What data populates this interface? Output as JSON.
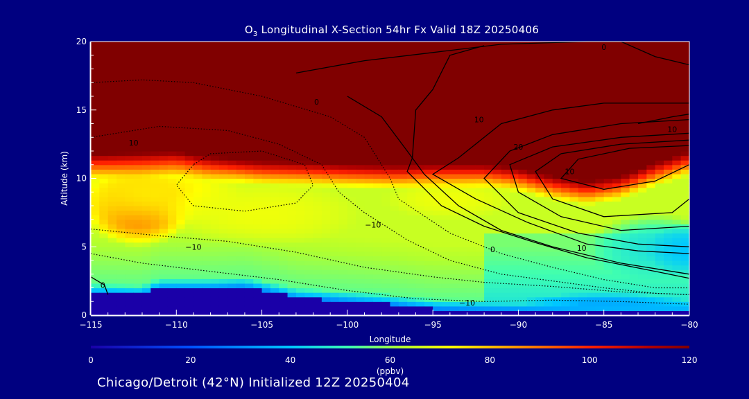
{
  "chart_data": {
    "type": "heatmap",
    "title_prefix": "O",
    "title_sub": "3",
    "title_rest": " Longitudinal X-Section 54hr  Fx Valid 18Z 20250406",
    "xlabel": "Longitude",
    "ylabel": "Altitude (km)",
    "xlim": [
      -115,
      -80
    ],
    "ylim": [
      0,
      20
    ],
    "x_ticks": [
      -115,
      -110,
      -105,
      -100,
      -95,
      -90,
      -85,
      -80
    ],
    "x_tick_labels": [
      "−115",
      "−110",
      "−105",
      "−100",
      "−95",
      "−90",
      "−85",
      "−80"
    ],
    "y_ticks": [
      0,
      5,
      10,
      15,
      20
    ],
    "y_tick_labels": [
      "0",
      "5",
      "10",
      "15",
      "20"
    ],
    "colorbar": {
      "label": "(ppbv)",
      "range": [
        0,
        120
      ],
      "ticks": [
        0,
        20,
        40,
        60,
        80,
        100,
        120
      ],
      "tick_labels": [
        "0",
        "20",
        "40",
        "60",
        "80",
        "100",
        "120"
      ],
      "stops": [
        {
          "v": 0,
          "c": "#1a00a8"
        },
        {
          "v": 20,
          "c": "#0050ff"
        },
        {
          "v": 40,
          "c": "#00c8ff"
        },
        {
          "v": 52,
          "c": "#40ffb0"
        },
        {
          "v": 62,
          "c": "#b0ff30"
        },
        {
          "v": 72,
          "c": "#ffff00"
        },
        {
          "v": 86,
          "c": "#ff9000"
        },
        {
          "v": 100,
          "c": "#ff2000"
        },
        {
          "v": 112,
          "c": "#b00000"
        },
        {
          "v": 120,
          "c": "#800000"
        }
      ]
    },
    "tropopause_km": [
      [
        -115,
        10.9
      ],
      [
        -112,
        11.0
      ],
      [
        -110,
        11.1
      ],
      [
        -108,
        10.7
      ],
      [
        -105,
        10.4
      ],
      [
        -102,
        10.3
      ],
      [
        -100,
        10.2
      ],
      [
        -97,
        10.1
      ],
      [
        -95,
        10.2
      ],
      [
        -92,
        10.2
      ],
      [
        -90,
        9.9
      ],
      [
        -88,
        9.3
      ],
      [
        -86,
        8.9
      ],
      [
        -84,
        9.3
      ],
      [
        -82,
        10.3
      ],
      [
        -80,
        11.1
      ]
    ],
    "stratosphere_ppbv": 120,
    "blobs": [
      {
        "lon": -112.2,
        "alt": 7.8,
        "rlon": 3.2,
        "ralt": 2.8,
        "ppbv": 90
      },
      {
        "lon": -111.5,
        "alt": 9.0,
        "rlon": 5.5,
        "ralt": 2.6,
        "ppbv": 75
      },
      {
        "lon": -105,
        "alt": 7.5,
        "rlon": 6,
        "ralt": 2.5,
        "ppbv": 70
      },
      {
        "lon": -94,
        "alt": 8.5,
        "rlon": 4,
        "ralt": 1.5,
        "ppbv": 70
      },
      {
        "lon": -82,
        "alt": 5.0,
        "rlon": 4,
        "ralt": 2.5,
        "ppbv": 46
      },
      {
        "lon": -80,
        "alt": 4.8,
        "rlon": 2.5,
        "ralt": 2.0,
        "ppbv": 40
      },
      {
        "lon": -85,
        "alt": 1.0,
        "rlon": 5,
        "ralt": 0.6,
        "ppbv": 35
      }
    ],
    "terrain_km": [
      [
        -115,
        1.6
      ],
      [
        -112,
        1.5
      ],
      [
        -111,
        2.0
      ],
      [
        -108,
        2.0
      ],
      [
        -106,
        2.1
      ],
      [
        -104,
        1.6
      ],
      [
        -103,
        1.3
      ],
      [
        -98,
        0.9
      ],
      [
        -95,
        0.5
      ],
      [
        -90,
        0.4
      ],
      [
        -85,
        0.3
      ],
      [
        -80,
        0.3
      ]
    ],
    "terrain_ppbv": 0,
    "contours": [
      {
        "style": "solid",
        "pts": [
          [
            -103,
            17.7
          ],
          [
            -99,
            18.6
          ],
          [
            -95,
            19.2
          ],
          [
            -91,
            19.8
          ],
          [
            -86,
            20.0
          ],
          [
            -84,
            20.0
          ]
        ]
      },
      {
        "style": "solid",
        "pts": [
          [
            -84,
            20.0
          ],
          [
            -82,
            18.9
          ],
          [
            -80,
            18.3
          ]
        ]
      },
      {
        "style": "solid",
        "pts": [
          [
            -92,
            19.7
          ],
          [
            -94,
            19.0
          ],
          [
            -95,
            16.5
          ],
          [
            -96,
            15.0
          ],
          [
            -96.2,
            11.5
          ],
          [
            -96.5,
            10.5
          ],
          [
            -94.5,
            8.0
          ],
          [
            -92,
            6.5
          ],
          [
            -89,
            5.3
          ],
          [
            -86,
            4.2
          ],
          [
            -82,
            3.2
          ],
          [
            -80,
            2.7
          ]
        ]
      },
      {
        "style": "solid",
        "pts": [
          [
            -100,
            16.0
          ],
          [
            -98,
            14.5
          ],
          [
            -96.5,
            12.0
          ],
          [
            -95.5,
            10.3
          ],
          [
            -93.5,
            8.0
          ],
          [
            -91,
            6.2
          ],
          [
            -88,
            5.0
          ],
          [
            -84,
            3.8
          ],
          [
            -80,
            3.0
          ]
        ]
      },
      {
        "style": "solid",
        "pts": [
          [
            -80,
            15.5
          ],
          [
            -85,
            15.5
          ],
          [
            -88,
            15.0
          ],
          [
            -91,
            14.0
          ],
          [
            -93.5,
            11.5
          ],
          [
            -95,
            10.3
          ],
          [
            -92.5,
            8.5
          ],
          [
            -89.5,
            6.8
          ],
          [
            -86,
            5.2
          ],
          [
            -83,
            4.7
          ],
          [
            -80,
            4.5
          ]
        ]
      },
      {
        "style": "solid",
        "pts": [
          [
            -80,
            14.3
          ],
          [
            -84,
            14.0
          ],
          [
            -88,
            13.2
          ],
          [
            -90.5,
            12.0
          ],
          [
            -92,
            10.0
          ],
          [
            -90,
            7.5
          ],
          [
            -86.5,
            6.0
          ],
          [
            -83,
            5.2
          ],
          [
            -80,
            5.0
          ]
        ]
      },
      {
        "style": "solid",
        "pts": [
          [
            -80,
            13.3
          ],
          [
            -84,
            13.0
          ],
          [
            -88,
            12.3
          ],
          [
            -90.5,
            11.0
          ],
          [
            -90,
            9.0
          ],
          [
            -87.5,
            7.2
          ],
          [
            -84,
            6.2
          ],
          [
            -80,
            6.5
          ]
        ]
      },
      {
        "style": "solid",
        "pts": [
          [
            -80,
            12.8
          ],
          [
            -84,
            12.5
          ],
          [
            -87.5,
            11.8
          ],
          [
            -89,
            10.5
          ],
          [
            -88,
            8.5
          ],
          [
            -85,
            7.2
          ],
          [
            -81,
            7.5
          ],
          [
            -80,
            8.5
          ]
        ]
      },
      {
        "style": "solid",
        "pts": [
          [
            -80,
            12.4
          ],
          [
            -83.5,
            12.2
          ],
          [
            -86.5,
            11.4
          ],
          [
            -87.5,
            10.0
          ],
          [
            -85,
            9.2
          ],
          [
            -82,
            9.8
          ],
          [
            -80,
            11.0
          ]
        ]
      },
      {
        "style": "solid",
        "pts": [
          [
            -83,
            14.0
          ],
          [
            -81,
            14.5
          ],
          [
            -80,
            14.7
          ]
        ]
      },
      {
        "style": "dotted",
        "pts": [
          [
            -115,
            17.0
          ],
          [
            -112,
            17.2
          ],
          [
            -109,
            17.0
          ],
          [
            -105,
            16.0
          ],
          [
            -101,
            14.5
          ],
          [
            -99,
            13.0
          ],
          [
            -98,
            11.0
          ],
          [
            -97.5,
            10.0
          ],
          [
            -97,
            8.5
          ],
          [
            -94,
            6.0
          ],
          [
            -91,
            4.5
          ],
          [
            -88,
            3.5
          ],
          [
            -85,
            2.6
          ],
          [
            -82,
            2.0
          ],
          [
            -80,
            2.0
          ]
        ]
      },
      {
        "style": "dotted",
        "pts": [
          [
            -115,
            13.0
          ],
          [
            -111,
            13.8
          ],
          [
            -107,
            13.5
          ],
          [
            -104,
            12.5
          ],
          [
            -101.5,
            11.0
          ],
          [
            -100.5,
            9.0
          ],
          [
            -99,
            7.5
          ],
          [
            -96.5,
            5.5
          ],
          [
            -94,
            4.0
          ],
          [
            -91,
            3.0
          ],
          [
            -88,
            2.5
          ],
          [
            -85,
            2.0
          ],
          [
            -82,
            1.6
          ],
          [
            -80,
            1.5
          ]
        ]
      },
      {
        "style": "dotted",
        "pts": [
          [
            -109,
            11.0
          ],
          [
            -110,
            9.5
          ],
          [
            -109,
            8.0
          ],
          [
            -106,
            7.6
          ],
          [
            -103,
            8.2
          ],
          [
            -102,
            9.5
          ],
          [
            -102.5,
            11.0
          ],
          [
            -105,
            12.0
          ],
          [
            -108,
            11.8
          ],
          [
            -109,
            11.0
          ]
        ]
      },
      {
        "style": "dotted",
        "pts": [
          [
            -115,
            6.3
          ],
          [
            -111,
            5.8
          ],
          [
            -107,
            5.4
          ],
          [
            -103,
            4.6
          ],
          [
            -99,
            3.5
          ],
          [
            -95,
            2.8
          ],
          [
            -92,
            2.4
          ],
          [
            -88,
            2.1
          ],
          [
            -84,
            1.7
          ],
          [
            -80,
            1.5
          ]
        ]
      },
      {
        "style": "dotted",
        "pts": [
          [
            -115,
            4.5
          ],
          [
            -112,
            3.8
          ],
          [
            -108,
            3.2
          ],
          [
            -104,
            2.6
          ],
          [
            -100,
            1.8
          ],
          [
            -96,
            1.2
          ],
          [
            -92,
            1.0
          ],
          [
            -88,
            1.1
          ],
          [
            -84,
            1.0
          ],
          [
            -80,
            0.8
          ]
        ]
      },
      {
        "style": "solid",
        "pts": [
          [
            -115,
            2.8
          ],
          [
            -114.2,
            2.2
          ],
          [
            -114.0,
            1.5
          ]
        ]
      }
    ],
    "contour_labels": [
      {
        "text": "0",
        "lon": -85.0,
        "alt": 19.6
      },
      {
        "text": "0",
        "lon": -101.8,
        "alt": 15.6
      },
      {
        "text": "10",
        "lon": -92.3,
        "alt": 14.3
      },
      {
        "text": "10",
        "lon": -81.0,
        "alt": 13.6
      },
      {
        "text": "20",
        "lon": -90.0,
        "alt": 12.3
      },
      {
        "text": "10",
        "lon": -87.0,
        "alt": 10.5
      },
      {
        "text": "10",
        "lon": -112.5,
        "alt": 12.6
      },
      {
        "text": "−10",
        "lon": -98.5,
        "alt": 6.6
      },
      {
        "text": "0",
        "lon": -91.5,
        "alt": 4.8
      },
      {
        "text": "10",
        "lon": -86.3,
        "alt": 4.9
      },
      {
        "text": "−10",
        "lon": -109.0,
        "alt": 5.0
      },
      {
        "text": "0",
        "lon": -114.3,
        "alt": 2.2
      },
      {
        "text": "−10",
        "lon": -93.0,
        "alt": 0.9
      }
    ]
  },
  "footer": {
    "text": "Chicago/Detroit (42°N) Initialized 12Z 20250404"
  }
}
